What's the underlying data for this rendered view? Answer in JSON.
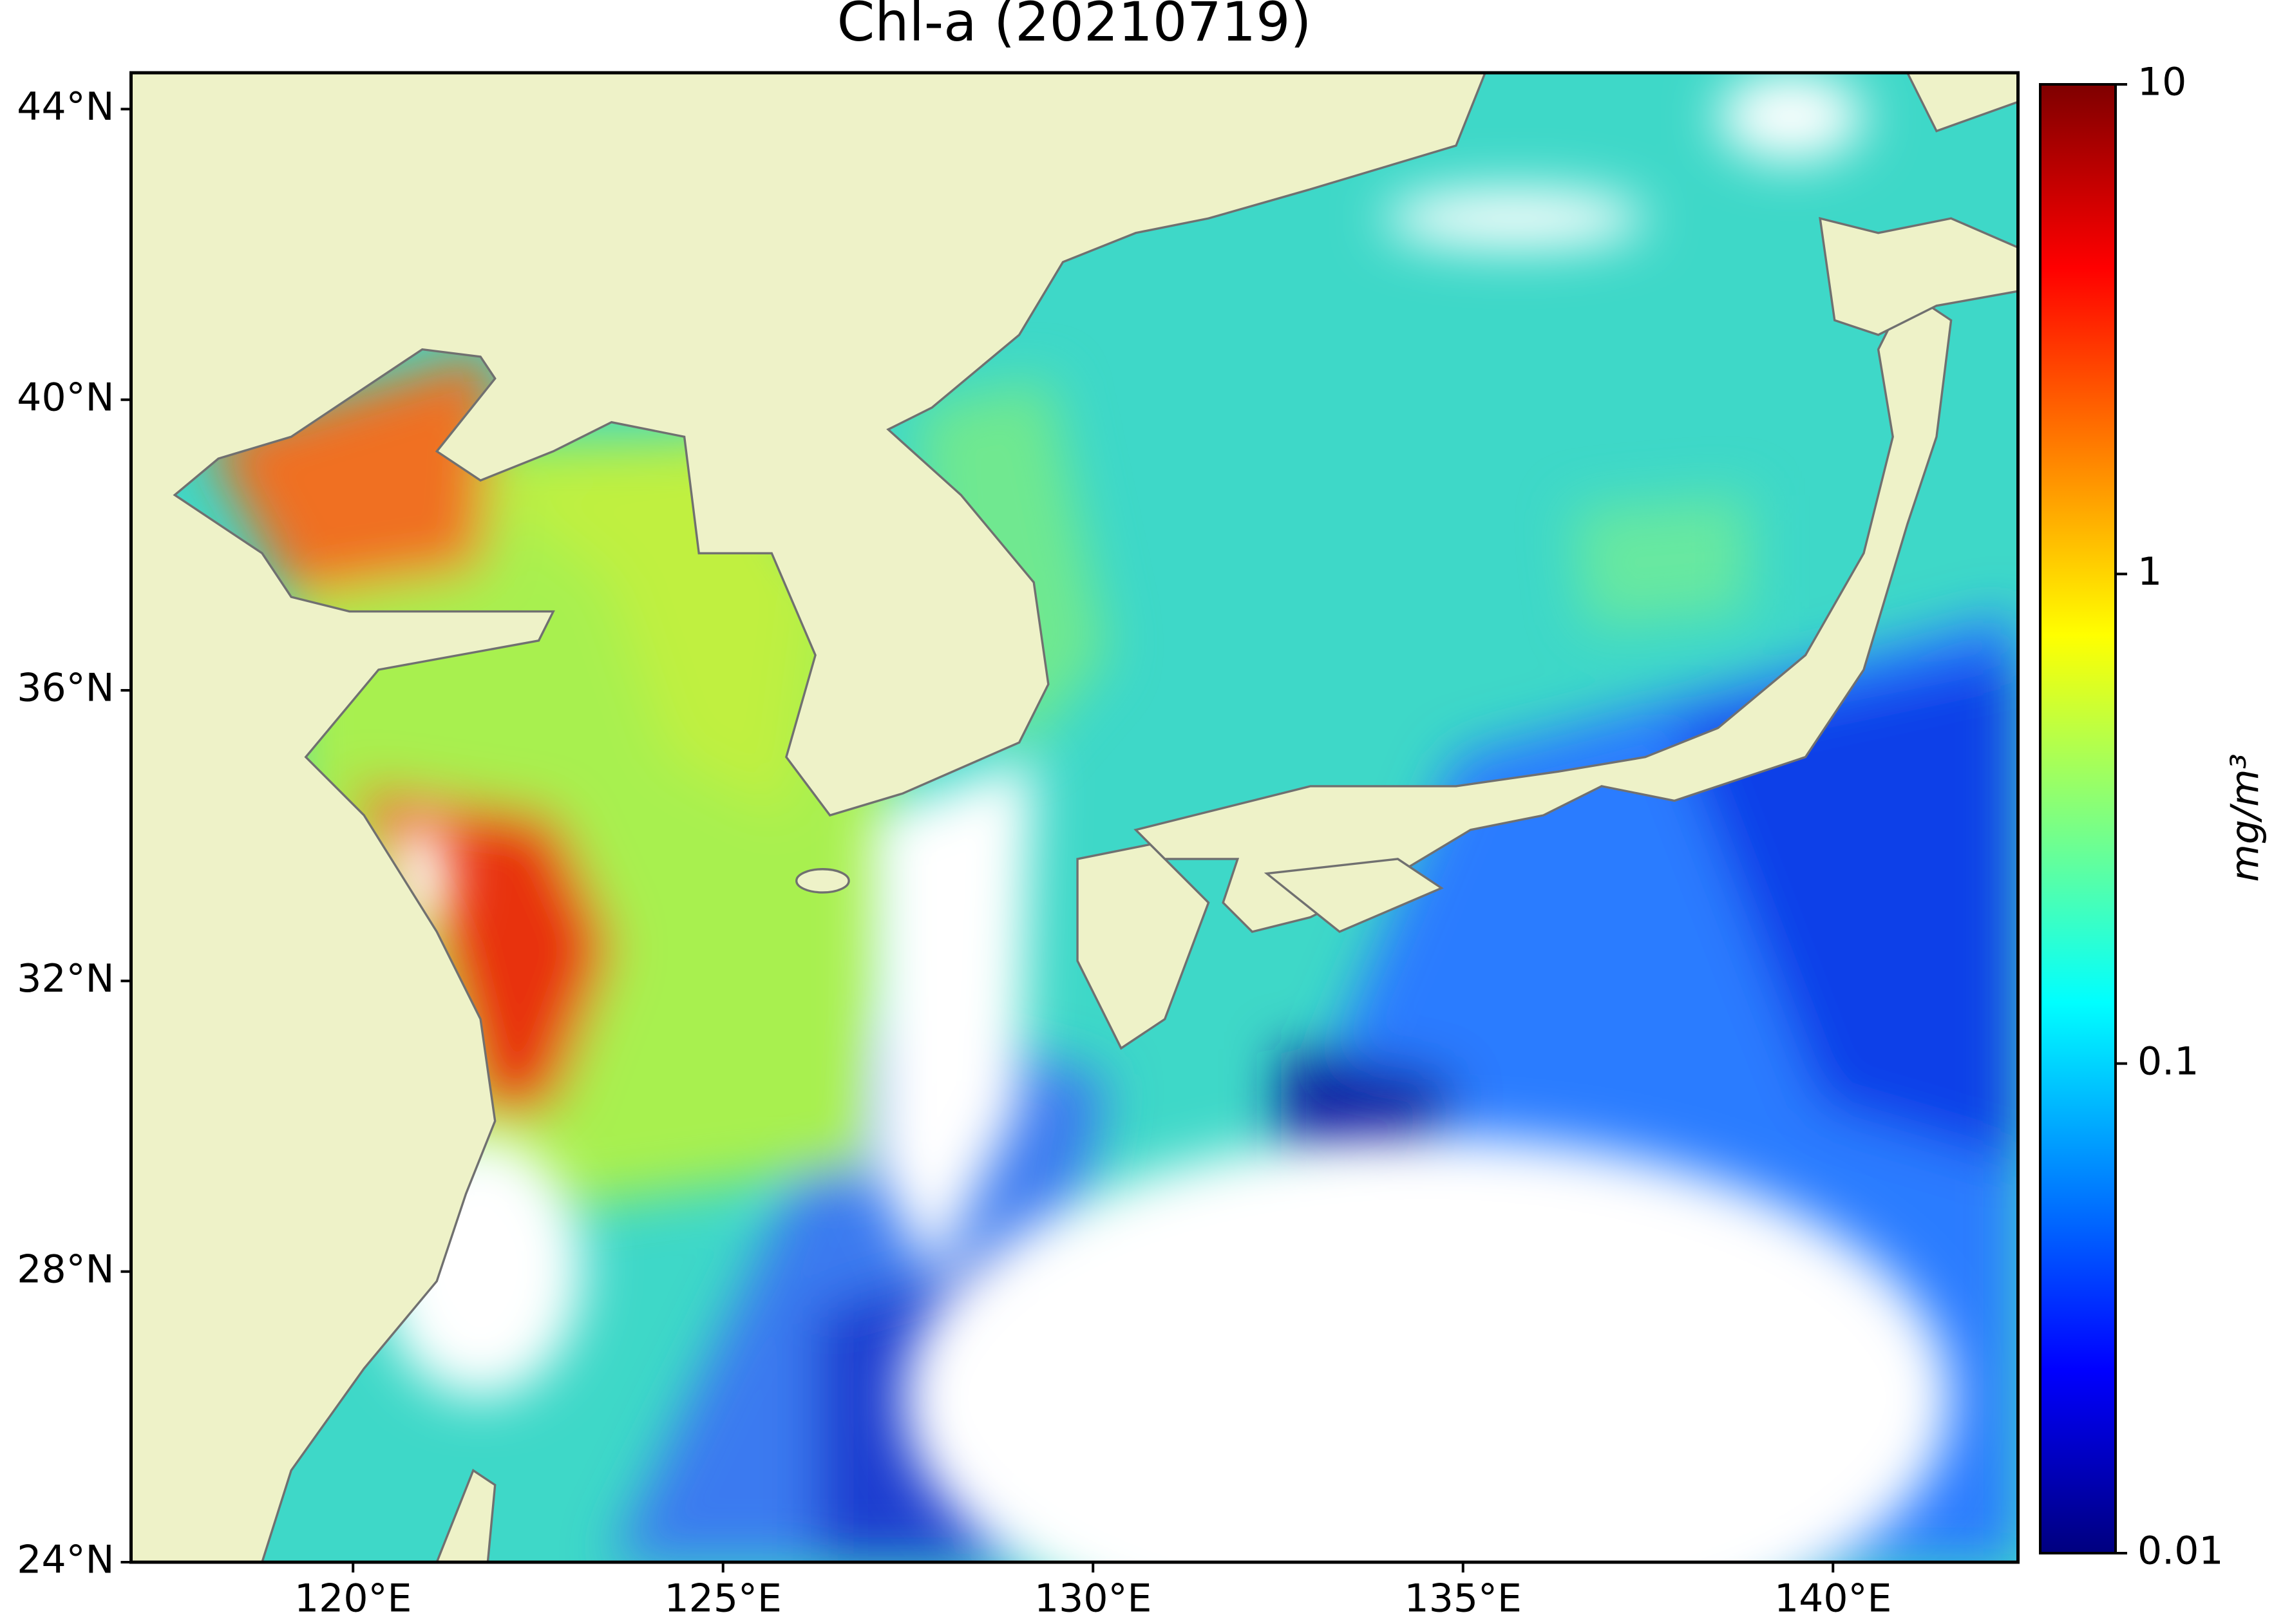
{
  "chart_data": {
    "type": "map",
    "title": "Chl-a (20210719)",
    "xlim": [
      117,
      142.5
    ],
    "ylim": [
      24,
      44.5
    ],
    "xticks": [
      {
        "value": 120,
        "label": "120°E"
      },
      {
        "value": 125,
        "label": "125°E"
      },
      {
        "value": 130,
        "label": "130°E"
      },
      {
        "value": 135,
        "label": "135°E"
      },
      {
        "value": 140,
        "label": "140°E"
      }
    ],
    "yticks": [
      {
        "value": 24,
        "label": "24°N"
      },
      {
        "value": 28,
        "label": "28°N"
      },
      {
        "value": 32,
        "label": "32°N"
      },
      {
        "value": 36,
        "label": "36°N"
      },
      {
        "value": 40,
        "label": "40°N"
      },
      {
        "value": 44,
        "label": "44°N"
      }
    ],
    "colorbar": {
      "label": "mg/m³",
      "lim": [
        0.01,
        10
      ],
      "ticks": [
        0.01,
        0.1,
        1,
        10
      ],
      "scale": "log",
      "colormap": "jet"
    }
  }
}
